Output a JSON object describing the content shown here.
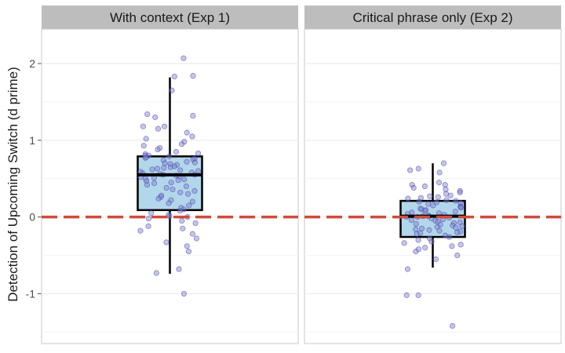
{
  "chart_data": {
    "type": "box",
    "ylabel": "Detection of Upcoming Switch (d prime)",
    "ylim": [
      -1.65,
      2.45
    ],
    "yticks": [
      -1,
      0,
      1,
      2
    ],
    "ytick_labels": [
      "-1",
      "0",
      "1",
      "2"
    ],
    "reference_line": {
      "y": 0,
      "style": "dashed",
      "color": "#d04a3a"
    },
    "colors": {
      "box_fill": "#b3d7ea",
      "box_stroke": "#000000",
      "point_fill": "#7f7fd0",
      "point_stroke": "#4a4aa8",
      "strip_fill": "#bdbdbd",
      "grid": "#ebebeb",
      "panel_border": "#c8c8c8"
    },
    "panels": [
      {
        "title": "With context (Exp 1)",
        "box": {
          "min": -0.74,
          "q1": 0.09,
          "median": 0.55,
          "q3": 0.79,
          "max": 1.82
        },
        "points": [
          2.07,
          1.83,
          1.84,
          1.65,
          1.34,
          1.32,
          1.3,
          1.18,
          1.18,
          1.15,
          1.1,
          1.05,
          1.02,
          0.98,
          0.95,
          0.93,
          0.9,
          0.88,
          0.85,
          0.83,
          0.82,
          0.8,
          0.8,
          0.79,
          0.78,
          0.77,
          0.76,
          0.75,
          0.74,
          0.72,
          0.71,
          0.7,
          0.69,
          0.68,
          0.66,
          0.65,
          0.64,
          0.63,
          0.62,
          0.61,
          0.6,
          0.59,
          0.58,
          0.57,
          0.56,
          0.55,
          0.55,
          0.54,
          0.53,
          0.52,
          0.51,
          0.5,
          0.49,
          0.48,
          0.47,
          0.45,
          0.44,
          0.42,
          0.4,
          0.38,
          0.36,
          0.34,
          0.32,
          0.3,
          0.28,
          0.26,
          0.24,
          0.22,
          0.2,
          0.18,
          0.15,
          0.12,
          0.1,
          0.08,
          0.05,
          0.03,
          0.01,
          0.0,
          -0.02,
          -0.05,
          -0.08,
          -0.12,
          -0.15,
          -0.18,
          -0.22,
          -0.28,
          -0.33,
          -0.38,
          -0.45,
          -0.68,
          -0.73,
          -1.0
        ]
      },
      {
        "title": "Critical phrase only (Exp 2)",
        "box": {
          "min": -0.66,
          "q1": -0.26,
          "median": 0.01,
          "q3": 0.21,
          "max": 0.7
        },
        "points": [
          0.7,
          0.63,
          0.61,
          0.58,
          0.45,
          0.42,
          0.42,
          0.4,
          0.38,
          0.36,
          0.34,
          0.32,
          0.3,
          0.28,
          0.27,
          0.26,
          0.25,
          0.24,
          0.22,
          0.21,
          0.2,
          0.19,
          0.18,
          0.17,
          0.15,
          0.14,
          0.13,
          0.12,
          0.11,
          0.1,
          0.09,
          0.08,
          0.07,
          0.06,
          0.05,
          0.04,
          0.03,
          0.02,
          0.01,
          0.01,
          0.0,
          0.0,
          -0.01,
          -0.02,
          -0.03,
          -0.04,
          -0.05,
          -0.06,
          -0.07,
          -0.08,
          -0.09,
          -0.1,
          -0.11,
          -0.12,
          -0.13,
          -0.14,
          -0.15,
          -0.16,
          -0.17,
          -0.18,
          -0.19,
          -0.2,
          -0.21,
          -0.22,
          -0.24,
          -0.26,
          -0.28,
          -0.3,
          -0.32,
          -0.34,
          -0.36,
          -0.38,
          -0.4,
          -0.42,
          -0.45,
          -0.5,
          -0.55,
          -0.68,
          -1.02,
          -1.02,
          -1.42
        ]
      }
    ]
  }
}
